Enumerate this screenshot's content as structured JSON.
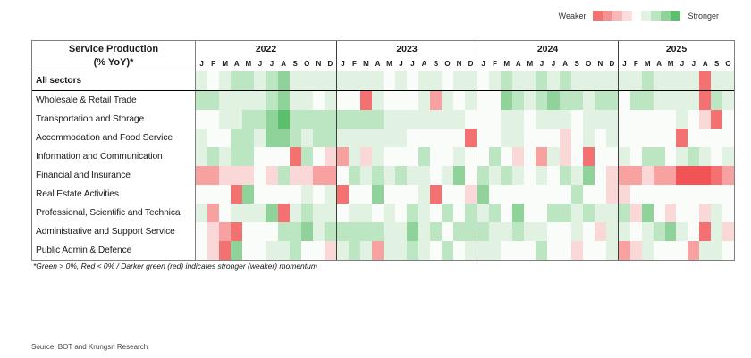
{
  "legend": {
    "weaker_label": "Weaker",
    "stronger_label": "Stronger",
    "weaker_colors": [
      "#f47171",
      "#f69191",
      "#f9b8b8",
      "#fcdcdc"
    ],
    "stronger_colors": [
      "#e1f1e2",
      "#bce5c1",
      "#8fd39a",
      "#5cbf6e"
    ]
  },
  "table": {
    "title_line1": "Service Production",
    "title_line2": "(% YoY)*"
  },
  "palette": {
    "-4": "#f15454",
    "-3": "#f47171",
    "-2": "#f7a1a1",
    "-1": "#fbd8d8",
    "0": "#f9fcf9",
    "1": "#e1f1e2",
    "2": "#bce5c1",
    "3": "#8fd39a",
    "4": "#5cbf6e"
  },
  "footnote": "*Green > 0%, Red < 0% / Darker green (red) indicates stronger (weaker) momentum",
  "source": "Source: BOT and Krungsri Research",
  "chart_data": {
    "type": "heatmap",
    "title": "Service Production (% YoY)*",
    "legend_weaker": "Weaker",
    "legend_stronger": "Stronger",
    "value_scale": "Momentum estimated from cell color: -4 strong red (weaker) to +4 dark green (stronger), 0 = white/neutral",
    "years": [
      {
        "label": "2022",
        "months": [
          "J",
          "F",
          "M",
          "A",
          "M",
          "J",
          "J",
          "A",
          "S",
          "O",
          "N",
          "D"
        ]
      },
      {
        "label": "2023",
        "months": [
          "J",
          "F",
          "M",
          "A",
          "M",
          "J",
          "J",
          "A",
          "S",
          "O",
          "N",
          "D"
        ]
      },
      {
        "label": "2024",
        "months": [
          "J",
          "F",
          "M",
          "A",
          "M",
          "J",
          "J",
          "A",
          "S",
          "O",
          "N",
          "D"
        ]
      },
      {
        "label": "2025",
        "months": [
          "J",
          "F",
          "M",
          "A",
          "M",
          "J",
          "J",
          "A",
          "S",
          "O"
        ]
      }
    ],
    "rows": [
      {
        "label": "All sectors",
        "values": [
          1,
          0,
          1,
          2,
          2,
          1,
          2,
          3,
          1,
          1,
          1,
          1,
          1,
          1,
          1,
          1,
          0,
          1,
          0,
          1,
          1,
          0,
          1,
          1,
          0,
          1,
          2,
          1,
          1,
          2,
          1,
          2,
          1,
          1,
          1,
          1,
          1,
          1,
          2,
          1,
          1,
          1,
          1,
          -3,
          1,
          1
        ]
      },
      {
        "label": "Wholesale & Retail Trade",
        "values": [
          2,
          2,
          1,
          1,
          1,
          1,
          2,
          3,
          1,
          1,
          0,
          1,
          0,
          0,
          -3,
          1,
          0,
          0,
          0,
          1,
          -2,
          1,
          0,
          1,
          0,
          0,
          3,
          2,
          1,
          2,
          3,
          2,
          2,
          1,
          2,
          2,
          0,
          2,
          2,
          1,
          1,
          1,
          1,
          -3,
          2,
          1
        ]
      },
      {
        "label": "Transportation and Storage",
        "values": [
          0,
          0,
          1,
          1,
          2,
          2,
          3,
          4,
          2,
          2,
          2,
          2,
          2,
          2,
          2,
          2,
          1,
          1,
          1,
          1,
          1,
          1,
          1,
          0,
          0,
          0,
          1,
          1,
          0,
          1,
          1,
          1,
          0,
          1,
          1,
          1,
          0,
          0,
          0,
          0,
          0,
          1,
          0,
          -1,
          -3,
          0
        ]
      },
      {
        "label": "Accommodation and Food Service",
        "values": [
          1,
          0,
          0,
          2,
          2,
          1,
          3,
          3,
          2,
          1,
          2,
          2,
          1,
          1,
          1,
          1,
          1,
          1,
          0,
          0,
          0,
          0,
          0,
          -3,
          0,
          0,
          1,
          1,
          0,
          0,
          0,
          -1,
          0,
          1,
          0,
          1,
          0,
          0,
          0,
          0,
          0,
          -3,
          0,
          0,
          0,
          0
        ]
      },
      {
        "label": "Information and Communication",
        "values": [
          1,
          2,
          1,
          2,
          2,
          0,
          0,
          0,
          -3,
          2,
          0,
          -1,
          -2,
          1,
          -1,
          1,
          0,
          0,
          0,
          2,
          0,
          0,
          1,
          0,
          0,
          2,
          0,
          -1,
          0,
          -2,
          1,
          -1,
          0,
          -3,
          0,
          0,
          1,
          0,
          2,
          2,
          0,
          1,
          2,
          1,
          0,
          1
        ]
      },
      {
        "label": "Financial and Insurance",
        "values": [
          -2,
          -2,
          -1,
          -1,
          -1,
          0,
          -1,
          2,
          -1,
          -1,
          -2,
          -2,
          0,
          2,
          1,
          2,
          1,
          2,
          1,
          1,
          0,
          1,
          3,
          0,
          2,
          1,
          2,
          1,
          0,
          1,
          0,
          2,
          1,
          3,
          0,
          -1,
          -2,
          -2,
          -1,
          -2,
          -2,
          -4,
          -4,
          -4,
          -3,
          -2
        ]
      },
      {
        "label": "Real Estate Activities",
        "values": [
          0,
          0,
          0,
          -3,
          3,
          0,
          0,
          0,
          0,
          1,
          0,
          1,
          -3,
          0,
          0,
          3,
          0,
          0,
          0,
          1,
          -3,
          0,
          0,
          -1,
          3,
          0,
          0,
          0,
          0,
          0,
          0,
          0,
          2,
          0,
          0,
          -1,
          -1,
          0,
          0,
          0,
          0,
          0,
          0,
          0,
          0,
          0
        ]
      },
      {
        "label": "Professional, Scientific and Technical",
        "values": [
          1,
          -2,
          0,
          1,
          1,
          1,
          3,
          -3,
          1,
          2,
          1,
          1,
          0,
          1,
          1,
          0,
          1,
          0,
          2,
          1,
          0,
          2,
          0,
          2,
          1,
          2,
          0,
          3,
          0,
          0,
          2,
          2,
          1,
          2,
          1,
          1,
          2,
          -1,
          3,
          0,
          -1,
          0,
          0,
          -1,
          1,
          0
        ]
      },
      {
        "label": "Administrative and Support Service",
        "values": [
          0,
          -1,
          -2,
          -3,
          0,
          0,
          0,
          2,
          2,
          3,
          1,
          2,
          2,
          2,
          2,
          2,
          1,
          1,
          3,
          1,
          2,
          0,
          2,
          2,
          2,
          1,
          1,
          2,
          1,
          1,
          0,
          0,
          1,
          0,
          -1,
          1,
          1,
          0,
          1,
          2,
          3,
          1,
          0,
          -3,
          1,
          -1
        ]
      },
      {
        "label": "Public Admin & Defence",
        "values": [
          0,
          -1,
          -3,
          3,
          0,
          0,
          1,
          1,
          2,
          0,
          0,
          -1,
          1,
          2,
          1,
          -2,
          1,
          1,
          2,
          1,
          0,
          2,
          0,
          1,
          1,
          1,
          0,
          0,
          0,
          2,
          0,
          0,
          -1,
          0,
          0,
          1,
          -2,
          -1,
          1,
          0,
          0,
          0,
          -2,
          1,
          1,
          0
        ]
      }
    ]
  }
}
